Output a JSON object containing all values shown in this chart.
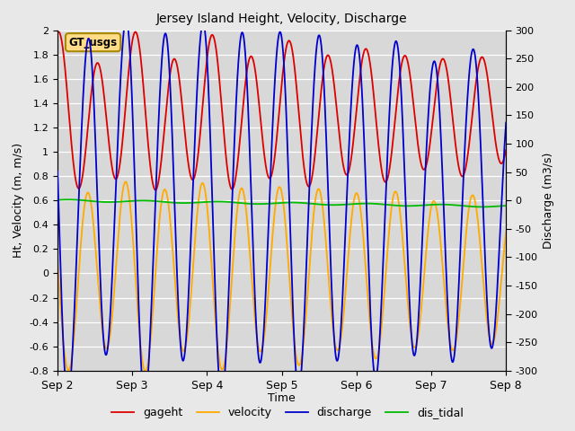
{
  "title": "Jersey Island Height, Velocity, Discharge",
  "xlabel": "Time",
  "ylabel_left": "Ht, Velocity (m, m/s)",
  "ylabel_right": "Discharge (m3/s)",
  "ylim_left": [
    -0.8,
    2.0
  ],
  "ylim_right": [
    -300,
    300
  ],
  "yticks_left": [
    -0.8,
    -0.6,
    -0.4,
    -0.2,
    0.0,
    0.2,
    0.4,
    0.6,
    0.8,
    1.0,
    1.2,
    1.4,
    1.6,
    1.8,
    2.0
  ],
  "yticks_right": [
    -300,
    -250,
    -200,
    -150,
    -100,
    -50,
    0,
    50,
    100,
    150,
    200,
    250,
    300
  ],
  "colors": {
    "gageht": "#dd0000",
    "velocity": "#ffaa00",
    "discharge": "#0000cc",
    "dis_tidal": "#00bb00"
  },
  "legend_labels": [
    "gageht",
    "velocity",
    "discharge",
    "dis_tidal"
  ],
  "annotation_text": "GT_usgs",
  "annotation_bg": "#ffdd88",
  "annotation_border": "#aa8800",
  "bg_color": "#d8d8d8",
  "fig_bg_color": "#e8e8e8",
  "grid_color": "#ffffff",
  "tick_dates": [
    "Sep 2",
    "Sep 3",
    "Sep 4",
    "Sep 5",
    "Sep 6",
    "Sep 7",
    "Sep 8"
  ],
  "linewidth": 1.3
}
